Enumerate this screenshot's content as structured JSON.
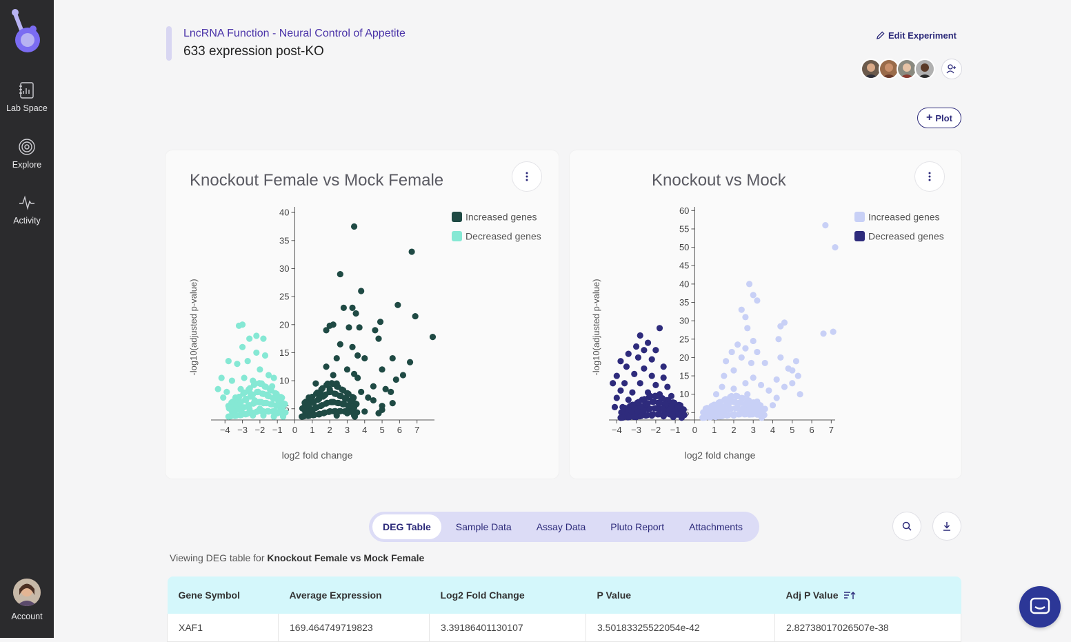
{
  "nav": {
    "items": [
      {
        "label": "Lab Space",
        "icon": "notebook-icon"
      },
      {
        "label": "Explore",
        "icon": "target-icon"
      },
      {
        "label": "Activity",
        "icon": "activity-icon"
      }
    ],
    "account_label": "Account"
  },
  "header": {
    "project": "LncRNA Function - Neural Control of Appetite",
    "experiment": "633 expression post-KO",
    "edit_label": "Edit Experiment",
    "plot_label": "Plot"
  },
  "tabs": [
    "DEG Table",
    "Sample Data",
    "Assay Data",
    "Pluto Report",
    "Attachments"
  ],
  "active_tab": "DEG Table",
  "viewing": {
    "prefix": "Viewing DEG table for ",
    "comparison": "Knockout Female vs Mock Female"
  },
  "table": {
    "headers": [
      "Gene Symbol",
      "Average Expression",
      "Log2 Fold Change",
      "P Value",
      "Adj P Value"
    ],
    "rows": [
      [
        "XAF1",
        "169.464749719823",
        "3.39186401130107",
        "3.50183325522054e-42",
        "2.82738017026507e-38"
      ]
    ]
  },
  "colors": {
    "increased_1": "#1f4a44",
    "decreased_1": "#85e8d4",
    "increased_2": "#c8d0f6",
    "decreased_2": "#2e2b7c",
    "accent": "#2c2a7a"
  },
  "chart_data": [
    {
      "type": "scatter",
      "title": "Knockout Female vs Mock Female",
      "xlabel": "log2 fold change",
      "ylabel": "-log10(adjusted p-value)",
      "xticks": [
        "−4",
        "−3",
        "−2",
        "−1",
        "0",
        "1",
        "2",
        "3",
        "4",
        "5",
        "6",
        "7"
      ],
      "yticks": [
        "5",
        "10",
        "15",
        "20",
        "25",
        "30",
        "35",
        "40"
      ],
      "xlim": [
        -4.8,
        8.0
      ],
      "ylim": [
        3,
        41
      ],
      "legend": [
        "Increased genes",
        "Decreased genes"
      ],
      "legend_position": "top-right",
      "series": [
        {
          "name": "Increased genes",
          "color": "#1f4a44",
          "points": [
            [
              3.4,
              37.5
            ],
            [
              6.7,
              33
            ],
            [
              2.6,
              29
            ],
            [
              3.8,
              26
            ],
            [
              5.9,
              23.5
            ],
            [
              2.8,
              23
            ],
            [
              3.3,
              23
            ],
            [
              3.5,
              22
            ],
            [
              6.9,
              21.5
            ],
            [
              4.9,
              20.5
            ],
            [
              2.2,
              20
            ],
            [
              2.0,
              19.8
            ],
            [
              3.1,
              19.5
            ],
            [
              3.7,
              19.5
            ],
            [
              1.8,
              19
            ],
            [
              4.6,
              19
            ],
            [
              7.9,
              17.8
            ],
            [
              4.8,
              17.5
            ],
            [
              3.3,
              16
            ],
            [
              2.6,
              16.5
            ],
            [
              3.6,
              14.5
            ],
            [
              2.4,
              14
            ],
            [
              4.0,
              14
            ],
            [
              5.6,
              14
            ],
            [
              6.6,
              13.3
            ],
            [
              1.8,
              12.5
            ],
            [
              3.0,
              12
            ],
            [
              5.0,
              12
            ],
            [
              3.4,
              11.2
            ],
            [
              2.2,
              11
            ],
            [
              6.2,
              11
            ],
            [
              3.6,
              10.5
            ],
            [
              5.8,
              10.2
            ],
            [
              1.2,
              9.5
            ],
            [
              2.4,
              9.5
            ],
            [
              4.5,
              9
            ],
            [
              5.2,
              8.5
            ],
            [
              2.0,
              8.5
            ],
            [
              3.8,
              8
            ],
            [
              5.5,
              8
            ],
            [
              1.5,
              7.5
            ],
            [
              4.2,
              7
            ],
            [
              0.8,
              7
            ],
            [
              4.5,
              6.5
            ],
            [
              2.8,
              6
            ],
            [
              5.6,
              6
            ],
            [
              5.0,
              5.5
            ],
            [
              3.2,
              5
            ],
            [
              1.0,
              4.5
            ],
            [
              2.0,
              4.5
            ],
            [
              3.0,
              4.2
            ],
            [
              4.0,
              4.5
            ],
            [
              5.0,
              4.8
            ],
            [
              0.6,
              4
            ],
            [
              1.4,
              4
            ],
            [
              2.4,
              3.8
            ],
            [
              3.4,
              3.8
            ],
            [
              4.8,
              4.2
            ]
          ]
        },
        {
          "name": "Decreased genes",
          "color": "#85e8d4",
          "points": [
            [
              -3.0,
              20
            ],
            [
              -3.2,
              19.8
            ],
            [
              -2.6,
              17.5
            ],
            [
              -2.2,
              18
            ],
            [
              -1.8,
              17.5
            ],
            [
              -3.0,
              16
            ],
            [
              -2.2,
              15
            ],
            [
              -1.7,
              14.5
            ],
            [
              -3.8,
              13.5
            ],
            [
              -3.3,
              13
            ],
            [
              -2.7,
              13.5
            ],
            [
              -2.0,
              12
            ],
            [
              -1.5,
              11
            ],
            [
              -1.2,
              10.5
            ],
            [
              -4.2,
              10.5
            ],
            [
              -3.6,
              10
            ],
            [
              -2.9,
              10.5
            ],
            [
              -2.4,
              10
            ],
            [
              -1.9,
              9.5
            ],
            [
              -1.3,
              9
            ],
            [
              -4.4,
              8.5
            ],
            [
              -3.9,
              8
            ],
            [
              -3.1,
              8.5
            ],
            [
              -2.6,
              8
            ],
            [
              -2.1,
              8
            ],
            [
              -1.6,
              7.5
            ],
            [
              -1.1,
              7
            ],
            [
              -4.1,
              7
            ],
            [
              -3.4,
              7
            ],
            [
              -2.8,
              6.5
            ],
            [
              -2.3,
              6.5
            ],
            [
              -1.8,
              6
            ],
            [
              -1.3,
              5.8
            ],
            [
              -0.9,
              5.5
            ],
            [
              -3.8,
              5.5
            ],
            [
              -3.2,
              5.5
            ],
            [
              -2.6,
              5
            ],
            [
              -2.0,
              5
            ],
            [
              -1.5,
              4.5
            ],
            [
              -1.0,
              4.2
            ],
            [
              -0.7,
              4
            ],
            [
              -3.0,
              4.2
            ],
            [
              -2.4,
              3.8
            ],
            [
              -1.8,
              3.8
            ],
            [
              -1.2,
              3.6
            ],
            [
              -3.5,
              4
            ]
          ]
        }
      ]
    },
    {
      "type": "scatter",
      "title": "Knockout vs Mock",
      "xlabel": "log2 fold change",
      "ylabel": "-log10(adjusted p-value)",
      "xticks": [
        "−4",
        "−3",
        "−2",
        "−1",
        "0",
        "1",
        "2",
        "3",
        "4",
        "5",
        "6",
        "7"
      ],
      "yticks": [
        "5",
        "10",
        "15",
        "20",
        "25",
        "30",
        "35",
        "40",
        "45",
        "50",
        "55",
        "60"
      ],
      "xlim": [
        -4.4,
        7.2
      ],
      "ylim": [
        3,
        61
      ],
      "legend": [
        "Increased genes",
        "Decreased genes"
      ],
      "legend_position": "top-right",
      "series": [
        {
          "name": "Increased genes",
          "color": "#c8d0f6",
          "points": [
            [
              6.7,
              56
            ],
            [
              7.2,
              50
            ],
            [
              2.8,
              40
            ],
            [
              3.0,
              37
            ],
            [
              3.2,
              35.5
            ],
            [
              2.4,
              33
            ],
            [
              2.6,
              31
            ],
            [
              4.6,
              29.5
            ],
            [
              4.4,
              28.5
            ],
            [
              2.7,
              28
            ],
            [
              7.1,
              27
            ],
            [
              6.6,
              26.5
            ],
            [
              4.3,
              25
            ],
            [
              3.0,
              24.5
            ],
            [
              2.2,
              23.5
            ],
            [
              2.6,
              22.5
            ],
            [
              1.9,
              21.5
            ],
            [
              3.2,
              21.5
            ],
            [
              4.4,
              20
            ],
            [
              2.4,
              20
            ],
            [
              1.6,
              19
            ],
            [
              2.9,
              18.5
            ],
            [
              5.2,
              19
            ],
            [
              3.6,
              18.5
            ],
            [
              4.8,
              17
            ],
            [
              5.0,
              16.5
            ],
            [
              2.0,
              16.5
            ],
            [
              5.3,
              15
            ],
            [
              1.5,
              15
            ],
            [
              3.0,
              14.5
            ],
            [
              4.2,
              14
            ],
            [
              5.0,
              13
            ],
            [
              2.6,
              13
            ],
            [
              1.4,
              12
            ],
            [
              3.4,
              12.5
            ],
            [
              4.6,
              12
            ],
            [
              2.0,
              11.5
            ],
            [
              3.8,
              11
            ],
            [
              5.4,
              10
            ],
            [
              1.1,
              10
            ],
            [
              2.7,
              10
            ],
            [
              4.2,
              9
            ],
            [
              1.7,
              8.5
            ],
            [
              3.2,
              8
            ],
            [
              2.2,
              7.5
            ],
            [
              4.0,
              7
            ],
            [
              1.0,
              6
            ],
            [
              3.6,
              6
            ],
            [
              0.8,
              5
            ],
            [
              2.4,
              5
            ],
            [
              0.5,
              4
            ],
            [
              1.3,
              4
            ],
            [
              2.0,
              4.2
            ],
            [
              2.8,
              4.5
            ],
            [
              3.2,
              5.2
            ]
          ]
        },
        {
          "name": "Decreased genes",
          "color": "#2e2b7c",
          "points": [
            [
              -2.8,
              26
            ],
            [
              -1.8,
              28
            ],
            [
              -3.0,
              23
            ],
            [
              -2.4,
              24
            ],
            [
              -2.6,
              22
            ],
            [
              -3.4,
              21
            ],
            [
              -2.0,
              22
            ],
            [
              -2.9,
              20
            ],
            [
              -2.2,
              19.5
            ],
            [
              -3.8,
              19
            ],
            [
              -3.5,
              17.5
            ],
            [
              -2.6,
              17
            ],
            [
              -1.6,
              17.5
            ],
            [
              -4.0,
              15
            ],
            [
              -3.1,
              15.5
            ],
            [
              -2.2,
              15
            ],
            [
              -1.6,
              14.5
            ],
            [
              -4.2,
              13
            ],
            [
              -3.6,
              13
            ],
            [
              -2.8,
              13
            ],
            [
              -2.0,
              12.5
            ],
            [
              -1.4,
              12
            ],
            [
              -3.8,
              11
            ],
            [
              -3.2,
              10.5
            ],
            [
              -2.4,
              10.5
            ],
            [
              -1.8,
              10
            ],
            [
              -1.2,
              9.5
            ],
            [
              -4.0,
              9
            ],
            [
              -3.4,
              8.5
            ],
            [
              -2.7,
              8.5
            ],
            [
              -2.1,
              8
            ],
            [
              -1.5,
              7.5
            ],
            [
              -1.0,
              7
            ],
            [
              -3.7,
              6.5
            ],
            [
              -3.0,
              6.5
            ],
            [
              -2.4,
              6
            ],
            [
              -1.8,
              6
            ],
            [
              -1.2,
              5.5
            ],
            [
              -0.8,
              5
            ],
            [
              -3.4,
              5
            ],
            [
              -2.8,
              4.5
            ],
            [
              -2.2,
              4.2
            ],
            [
              -1.6,
              4
            ],
            [
              -1.1,
              3.8
            ],
            [
              -3.0,
              3.8
            ],
            [
              -4.1,
              6.5
            ]
          ]
        }
      ]
    }
  ]
}
